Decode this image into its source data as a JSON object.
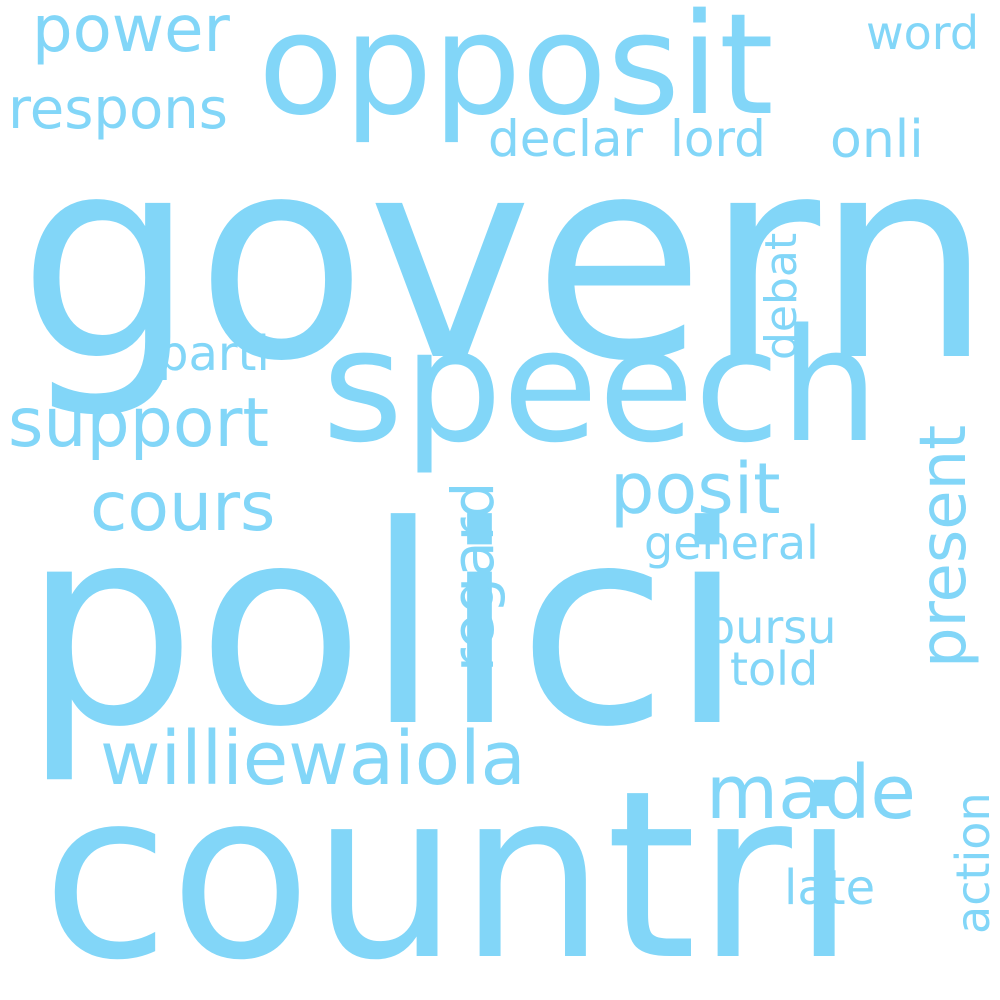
{
  "cloud": {
    "color": "#82d6f8",
    "background": "#ffffff",
    "words": {
      "govern": "govern",
      "polici": "polici",
      "countri": "countri",
      "speech": "speech",
      "opposit": "opposit",
      "power": "power",
      "word": "word",
      "respons": "respons",
      "declar": "declar",
      "lord": "lord",
      "onli": "onli",
      "support": "support",
      "parti": "parti",
      "debat": "debat",
      "present": "present",
      "cours": "cours",
      "posit": "posit",
      "regard": "regard",
      "general": "general",
      "pursu": "pursu",
      "told": "told",
      "williewaiola": "williewaiola",
      "made": "made",
      "late": "late",
      "action": "action"
    }
  }
}
